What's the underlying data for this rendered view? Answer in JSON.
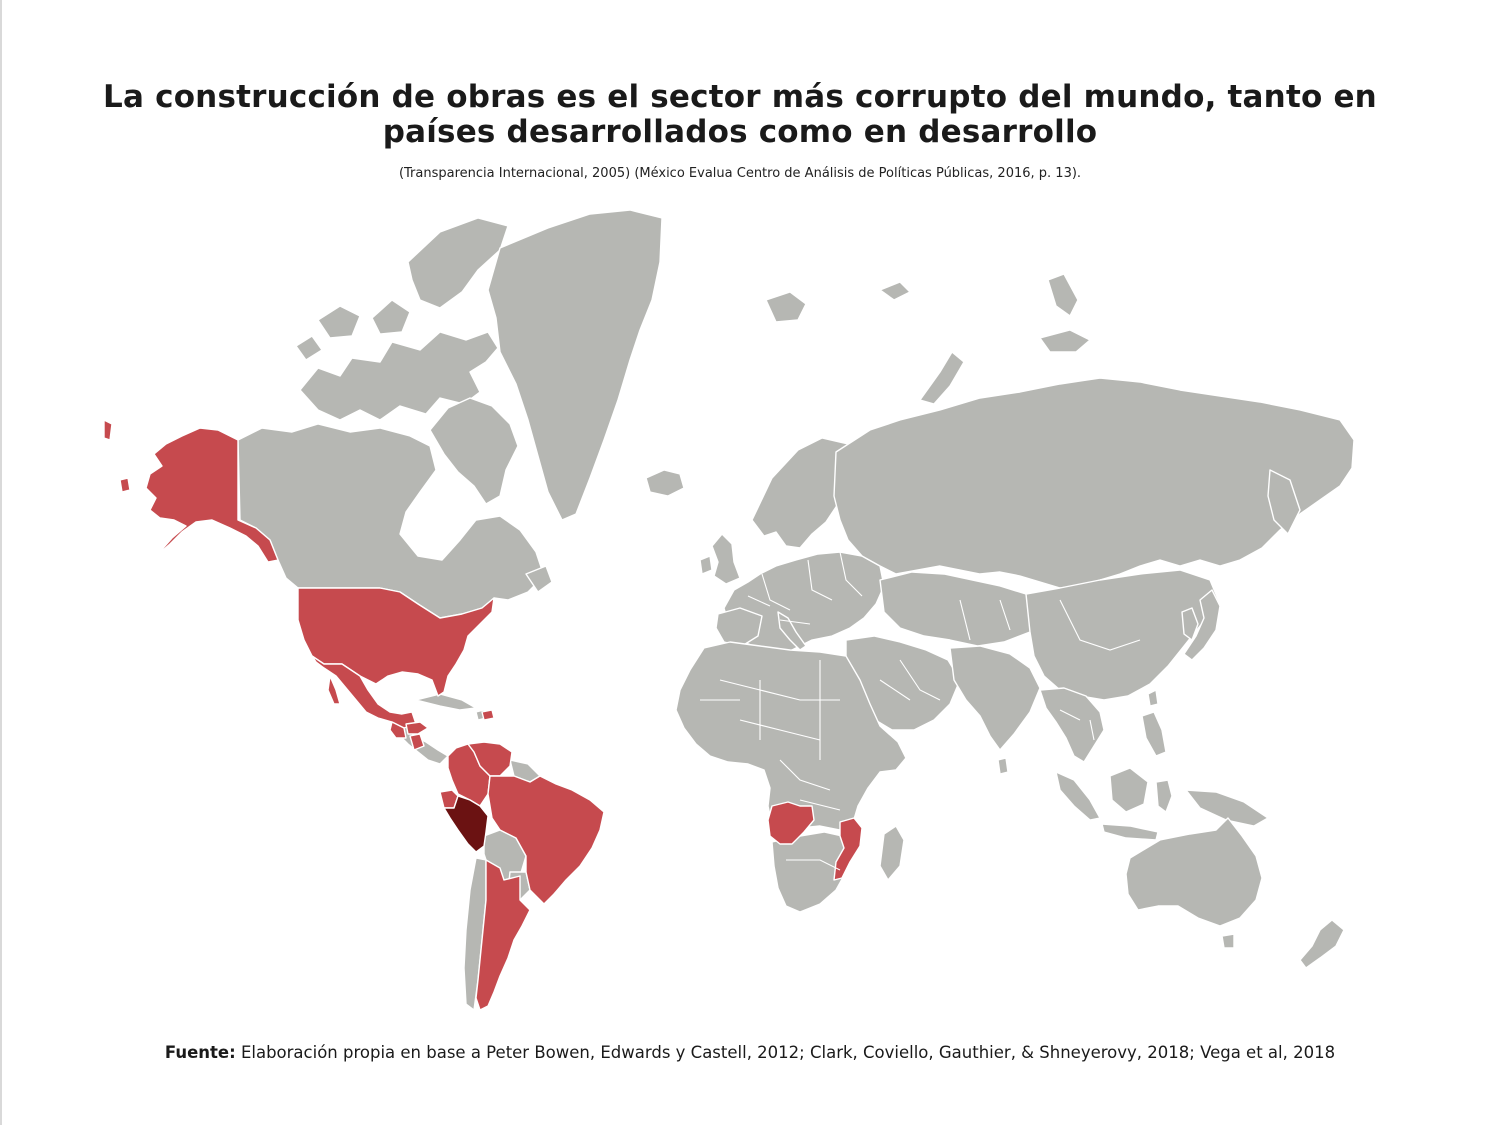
{
  "title": "La construcción de obras es el sector más corrupto del mundo, tanto en países desarrollados como en desarrollo",
  "subtitle": "(Transparencia Internacional, 2005) (México Evalua Centro de Análisis de Políticas Públicas, 2016, p. 13).",
  "source": {
    "label": "Fuente:",
    "text": " Elaboración propia en base a Peter Bowen, Edwards y Castell, 2012; Clark, Coviello, Gauthier, & Shneyerovy, 2018; Vega et al, 2018"
  },
  "map": {
    "highlighted_countries": [
      "United States",
      "Alaska (United States)",
      "Mexico",
      "Guatemala",
      "Honduras",
      "Nicaragua",
      "Dominican Republic",
      "Colombia",
      "Venezuela",
      "Ecuador",
      "Brazil",
      "Argentina",
      "Angola",
      "Mozambique"
    ],
    "emphasized_countries": [
      "Peru"
    ],
    "colors": {
      "base_land": "#b6b7b3",
      "highlighted": "#c64a4e",
      "emphasized": "#6b1212",
      "borders": "#ffffff",
      "background": "#ffffff"
    }
  }
}
